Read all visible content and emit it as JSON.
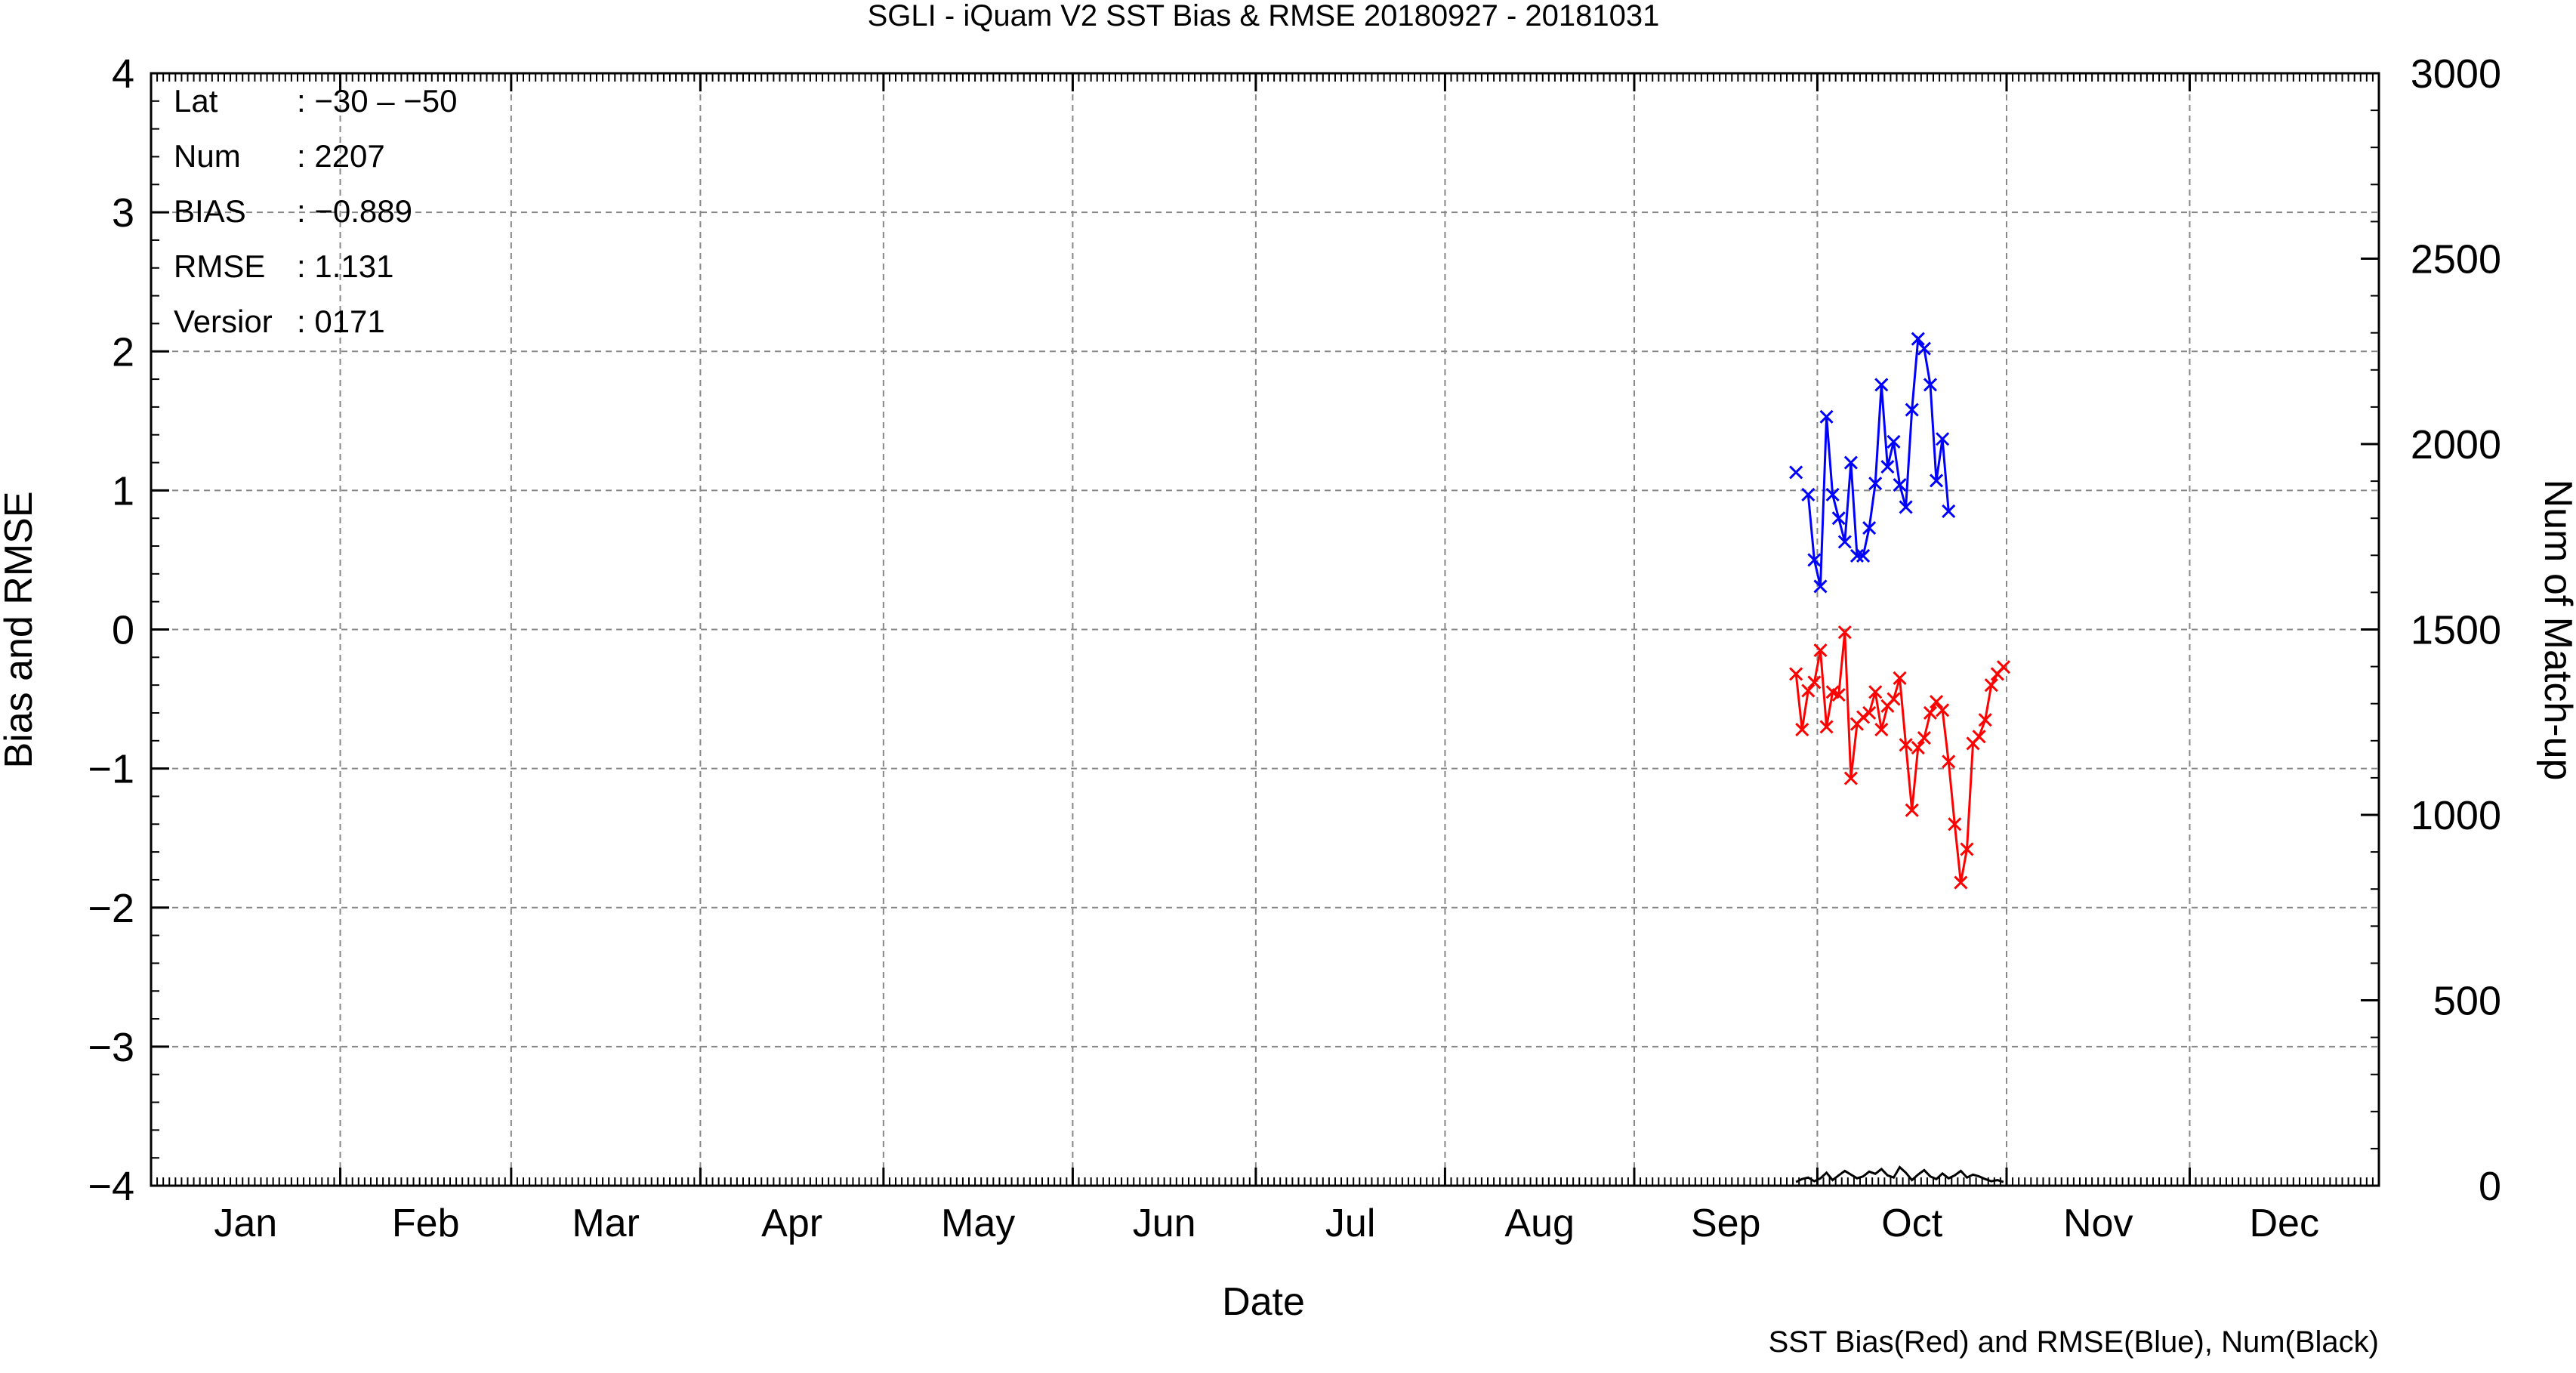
{
  "chart_data": {
    "type": "line",
    "title": "SGLI - iQuam V2 SST Bias & RMSE 20180927 - 20181031",
    "xlabel": "Date",
    "ylabel": "Bias and RMSE",
    "y2label": "Num of Match-up",
    "footnote": "SST Bias(Red) and RMSE(Blue), Num(Black)",
    "month_labels": [
      "Jan",
      "Feb",
      "Mar",
      "Apr",
      "May",
      "Jun",
      "Jul",
      "Aug",
      "Sep",
      "Oct",
      "Nov",
      "Dec"
    ],
    "xlim": [
      "2018-01-01",
      "2018-12-31"
    ],
    "ylim": [
      -4,
      4
    ],
    "y2lim": [
      0,
      3000
    ],
    "yticks": [
      "4",
      "3",
      "2",
      "1",
      "0",
      "−1",
      "−2",
      "−3",
      "−4"
    ],
    "y2ticks": [
      "3000",
      "2500",
      "2000",
      "1500",
      "1000",
      "500",
      "0"
    ],
    "grid": true,
    "stats": {
      "lat_label": "Lat",
      "lat_value": ": −30 – −50",
      "num_label": "Num",
      "num_value": ": 2207",
      "bias_label": "BIAS",
      "bias_value": ": −0.889",
      "rmse_label": "RMSE",
      "rmse_value": ": 1.131",
      "version_label": "Versior",
      "version_value": ": 0171"
    },
    "series": [
      {
        "name": "SST Bias",
        "color": "#ff0000",
        "axis": "left",
        "x": [
          "2018-09-27",
          "2018-09-28",
          "2018-09-29",
          "2018-09-30",
          "2018-10-01",
          "2018-10-02",
          "2018-10-03",
          "2018-10-04",
          "2018-10-05",
          "2018-10-06",
          "2018-10-07",
          "2018-10-08",
          "2018-10-09",
          "2018-10-10",
          "2018-10-11",
          "2018-10-12",
          "2018-10-13",
          "2018-10-14",
          "2018-10-15",
          "2018-10-16",
          "2018-10-17",
          "2018-10-18",
          "2018-10-19",
          "2018-10-20",
          "2018-10-21",
          "2018-10-22",
          "2018-10-23",
          "2018-10-24",
          "2018-10-25",
          "2018-10-26",
          "2018-10-27",
          "2018-10-28",
          "2018-10-29",
          "2018-10-30",
          "2018-10-31"
        ],
        "values": [
          -0.32,
          -0.72,
          -0.44,
          -0.38,
          -0.15,
          -0.7,
          -0.45,
          -0.47,
          -0.02,
          -1.07,
          -0.68,
          -0.63,
          -0.6,
          -0.45,
          -0.72,
          -0.55,
          -0.5,
          -0.35,
          -0.83,
          -1.3,
          -0.85,
          -0.78,
          -0.6,
          -0.52,
          -0.58,
          -0.95,
          -1.4,
          -1.82,
          -1.58,
          -0.82,
          -0.77,
          -0.65,
          -0.4,
          -0.32,
          -0.27
        ]
      },
      {
        "name": "SST RMSE",
        "color": "#0000ff",
        "axis": "left",
        "x": [
          "2018-09-27",
          "2018-09-29",
          "2018-09-30",
          "2018-10-01",
          "2018-10-02",
          "2018-10-03",
          "2018-10-04",
          "2018-10-05",
          "2018-10-06",
          "2018-10-07",
          "2018-10-08",
          "2018-10-09",
          "2018-10-10",
          "2018-10-11",
          "2018-10-12",
          "2018-10-13",
          "2018-10-14",
          "2018-10-15",
          "2018-10-16",
          "2018-10-17",
          "2018-10-18",
          "2018-10-19",
          "2018-10-20",
          "2018-10-21",
          "2018-10-22",
          "2018-10-23",
          "2018-10-24",
          "2018-10-25",
          "2018-10-26",
          "2018-10-27",
          "2018-10-28"
        ],
        "values": [
          1.13,
          0.97,
          0.5,
          0.31,
          1.53,
          0.97,
          0.8,
          0.63,
          1.2,
          0.53,
          0.53,
          0.73,
          1.05,
          1.76,
          1.17,
          1.35,
          1.04,
          0.88,
          1.58,
          2.09,
          2.02,
          1.76,
          1.07,
          1.37,
          0.85,
          null,
          null,
          null,
          null,
          null,
          null
        ]
      },
      {
        "name": "Num",
        "color": "#000000",
        "axis": "right",
        "x": [
          "2018-09-27",
          "2018-09-28",
          "2018-09-29",
          "2018-09-30",
          "2018-10-01",
          "2018-10-02",
          "2018-10-03",
          "2018-10-04",
          "2018-10-05",
          "2018-10-06",
          "2018-10-07",
          "2018-10-08",
          "2018-10-09",
          "2018-10-10",
          "2018-10-11",
          "2018-10-12",
          "2018-10-13",
          "2018-10-14",
          "2018-10-15",
          "2018-10-16",
          "2018-10-17",
          "2018-10-18",
          "2018-10-19",
          "2018-10-20",
          "2018-10-21",
          "2018-10-22",
          "2018-10-23",
          "2018-10-24",
          "2018-10-25",
          "2018-10-26",
          "2018-10-27",
          "2018-10-28",
          "2018-10-29",
          "2018-10-30",
          "2018-10-31"
        ],
        "values": [
          10,
          18,
          22,
          12,
          20,
          35,
          15,
          28,
          40,
          30,
          20,
          25,
          38,
          32,
          45,
          28,
          22,
          50,
          35,
          15,
          30,
          42,
          25,
          18,
          33,
          20,
          28,
          40,
          22,
          30,
          25,
          18,
          12,
          15,
          10
        ]
      }
    ]
  }
}
